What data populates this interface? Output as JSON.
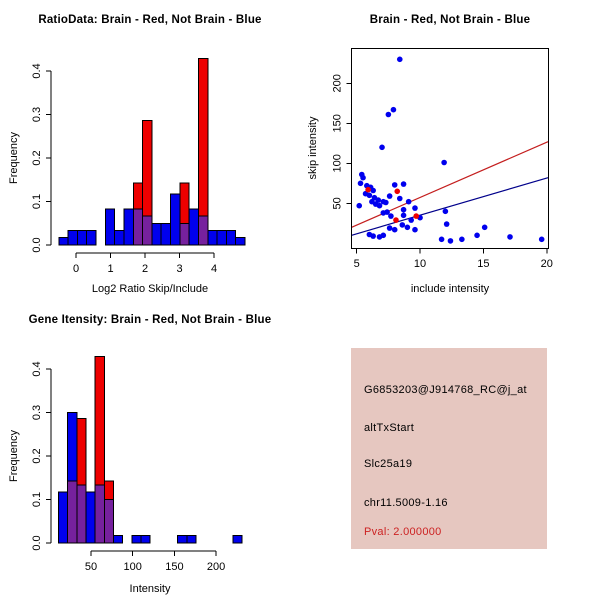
{
  "window": {
    "background": "#FFFFFF"
  },
  "colors": {
    "hist_blue": "#0000EE",
    "hist_red": "#EE0000",
    "hist_overlap_purple": "#76219E",
    "point_blue": "#0000EE",
    "point_red": "#EE0000",
    "line_red": "#C41E1E",
    "line_blue": "#00008B",
    "axis_black": "#000000",
    "info_bg": "#E6C7C0",
    "pval_red": "#CC2222"
  },
  "chart_data": [
    {
      "id": "ratio_hist",
      "type": "bar",
      "title": "RatioData: Brain - Red, Not Brain - Blue",
      "xlabel": "Log2 Ratio Skip/Include",
      "ylabel": "Frequency",
      "bin_start": -0.5,
      "bin_width": 0.27,
      "x_ticks": [
        0,
        1,
        2,
        3,
        4
      ],
      "y_ticks": [
        "0.0",
        "0.1",
        "0.2",
        "0.3",
        "0.4"
      ],
      "ylim": [
        0,
        0.43
      ],
      "grid": false,
      "series": [
        {
          "name": "Not Brain (blue)",
          "color": "#0000EE",
          "values": [
            0.0167,
            0.0333,
            0.0333,
            0.0333,
            0,
            0.0833,
            0.0333,
            0.0833,
            0.0833,
            0.0667,
            0.05,
            0.05,
            0.1167,
            0.05,
            0.0833,
            0.0667,
            0.0333,
            0.0333,
            0.0333,
            0.0167
          ]
        },
        {
          "name": "Brain (red)",
          "color": "#EE0000",
          "values": [
            0,
            0,
            0,
            0,
            0,
            0,
            0,
            0,
            0.1429,
            0.2857,
            0,
            0,
            0,
            0.1429,
            0,
            0.4286,
            0,
            0,
            0,
            0
          ]
        }
      ]
    },
    {
      "id": "scatter",
      "type": "scatter",
      "title": "Brain - Red, Not Brain - Blue",
      "xlabel": "include intensity",
      "ylabel": "skip intensity",
      "x_ticks": [
        5,
        10,
        15,
        20
      ],
      "y_ticks": [
        50,
        100,
        150,
        200
      ],
      "xlim": [
        4.6,
        20.1
      ],
      "ylim": [
        -6,
        244
      ],
      "grid": false,
      "legend": "none",
      "series": [
        {
          "name": "Not Brain (blue)",
          "color": "#0000EE",
          "points": [
            [
              8.4,
              230
            ],
            [
              7.9,
              167
            ],
            [
              7.5,
              161
            ],
            [
              7.0,
              120
            ],
            [
              11.9,
              101
            ],
            [
              5.4,
              86
            ],
            [
              5.5,
              82
            ],
            [
              5.3,
              75
            ],
            [
              5.8,
              72
            ],
            [
              6.1,
              70
            ],
            [
              6.3,
              66
            ],
            [
              5.7,
              62
            ],
            [
              6.0,
              60
            ],
            [
              6.4,
              57
            ],
            [
              6.7,
              54
            ],
            [
              6.2,
              52
            ],
            [
              6.5,
              49
            ],
            [
              5.2,
              47
            ],
            [
              6.8,
              47
            ],
            [
              8.0,
              73
            ],
            [
              8.7,
              74
            ],
            [
              7.6,
              59
            ],
            [
              8.4,
              56
            ],
            [
              7.1,
              52
            ],
            [
              7.3,
              51
            ],
            [
              9.1,
              52
            ],
            [
              8.7,
              42
            ],
            [
              9.6,
              44
            ],
            [
              7.7,
              34
            ],
            [
              7.1,
              38
            ],
            [
              7.4,
              39
            ],
            [
              10.0,
              32
            ],
            [
              9.3,
              29
            ],
            [
              8.6,
              23
            ],
            [
              7.6,
              19
            ],
            [
              8.0,
              17
            ],
            [
              6.0,
              11
            ],
            [
              6.3,
              9
            ],
            [
              6.8,
              8
            ],
            [
              7.1,
              10
            ],
            [
              9.0,
              20
            ],
            [
              9.6,
              17
            ],
            [
              8.7,
              35
            ],
            [
              12.0,
              40
            ],
            [
              12.1,
              24
            ],
            [
              11.7,
              5
            ],
            [
              12.4,
              3
            ],
            [
              13.3,
              5
            ],
            [
              14.5,
              10
            ],
            [
              15.1,
              20
            ],
            [
              17.1,
              8
            ],
            [
              19.6,
              5
            ]
          ]
        },
        {
          "name": "Brain (red)",
          "color": "#EE0000",
          "points": [
            [
              5.9,
              67
            ],
            [
              8.2,
              65
            ],
            [
              8.1,
              29
            ],
            [
              9.7,
              34
            ]
          ]
        }
      ],
      "fit_lines": [
        {
          "name": "brain-fit",
          "color": "#C41E1E",
          "x1": 4.6,
          "y1": 20,
          "x2": 20.1,
          "y2": 127
        },
        {
          "name": "notbrain-fit",
          "color": "#00008B",
          "x1": 4.6,
          "y1": 10,
          "x2": 20.1,
          "y2": 82
        }
      ]
    },
    {
      "id": "gene_hist",
      "type": "bar",
      "title": "Gene Itensity: Brain - Red, Not Brain - Blue",
      "xlabel": "Intensity",
      "ylabel": "Frequency",
      "bin_start": 11,
      "bin_width": 11,
      "x_ticks": [
        50,
        100,
        150,
        200
      ],
      "y_ticks": [
        "0.0",
        "0.1",
        "0.2",
        "0.3",
        "0.4"
      ],
      "ylim": [
        0,
        0.43
      ],
      "grid": false,
      "series": [
        {
          "name": "Not Brain (blue)",
          "color": "#0000EE",
          "values": [
            0.1167,
            0.3,
            0.1333,
            0.1167,
            0.1333,
            0.1,
            0.0167,
            0,
            0.0167,
            0.0167,
            0,
            0,
            0,
            0.0167,
            0.0167,
            0,
            0,
            0,
            0,
            0.0167
          ]
        },
        {
          "name": "Brain (red)",
          "color": "#EE0000",
          "values": [
            0,
            0.1429,
            0.2857,
            0,
            0.4286,
            0.1429,
            0,
            0,
            0,
            0,
            0,
            0,
            0,
            0,
            0,
            0,
            0,
            0,
            0,
            0
          ]
        }
      ]
    }
  ],
  "info_panel": {
    "bg": "#E6C7C0",
    "probe_id": "G6853203@J914768_RC@j_at",
    "event_type": "altTxStart",
    "gene_symbol": "Slc25a19",
    "locus": "chr11.5009-1.16",
    "pval": "Pval: 2.000000"
  }
}
